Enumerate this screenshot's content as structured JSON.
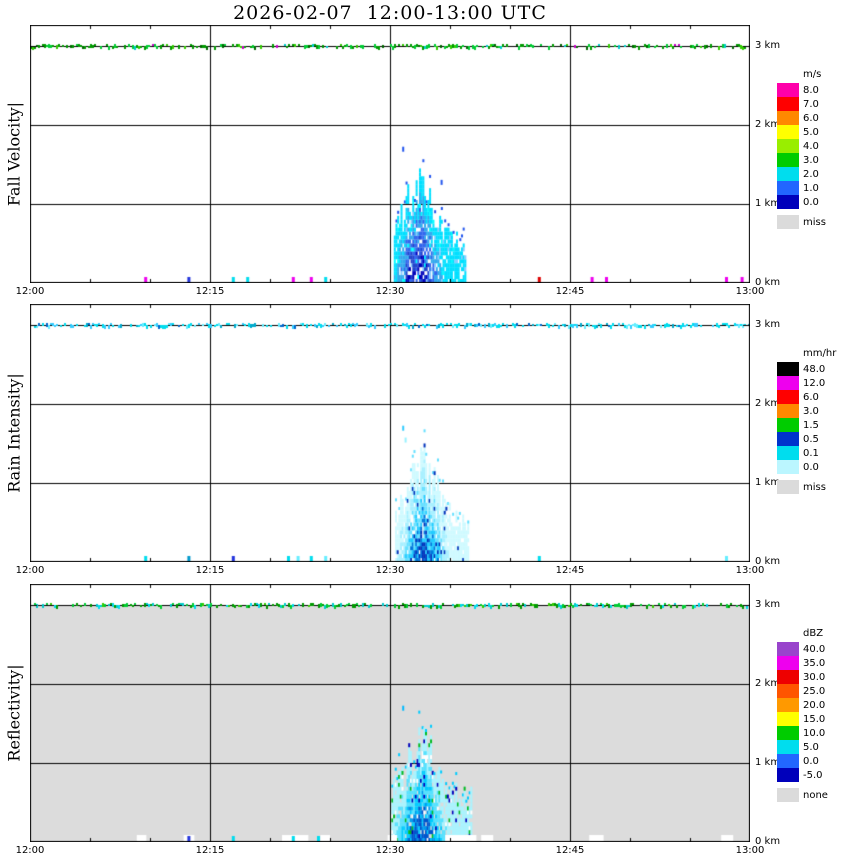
{
  "chart_data": {
    "type": "heatmap",
    "title": "2026-02-07  12:00-13:00 UTC",
    "x_axis": {
      "ticks": [
        "12:00",
        "12:15",
        "12:30",
        "12:45",
        "13:00"
      ],
      "minutes": [
        0,
        15,
        30,
        45,
        60
      ]
    },
    "y_axis": {
      "ticks": [
        "3 km",
        "2 km",
        "1 km",
        "0 km"
      ],
      "km": [
        3,
        2,
        1,
        0
      ],
      "max_km": 3.27
    },
    "panels": [
      {
        "id": "fall-velocity",
        "label": "Fall Velocity|",
        "units": "m/s",
        "area_fill": null,
        "legend": {
          "title": "m/s",
          "entries": [
            {
              "label": "8.0",
              "color": "#FF00AA"
            },
            {
              "label": "7.0",
              "color": "#FF0000"
            },
            {
              "label": "6.0",
              "color": "#FF8800"
            },
            {
              "label": "5.0",
              "color": "#FFFF00"
            },
            {
              "label": "4.0",
              "color": "#99EE00"
            },
            {
              "label": "3.0",
              "color": "#00CC00"
            },
            {
              "label": "2.0",
              "color": "#00DDEE"
            },
            {
              "label": "1.0",
              "color": "#2266FF"
            },
            {
              "label": "0.0",
              "color": "#0000BB"
            }
          ],
          "missing": {
            "label": "miss",
            "color": "#DBDBDB"
          }
        },
        "top_band": {
          "h_km": 3.0,
          "density": 0.6,
          "colors": [
            [
              "#009900",
              0.42
            ],
            [
              "#00CC33",
              0.25
            ],
            [
              "#006600",
              0.15
            ],
            [
              "#33CC00",
              0.1
            ],
            [
              "#CC00CC",
              0.03
            ],
            [
              "#00CCCC",
              0.05
            ]
          ]
        },
        "cell": {
          "t_start": 30.4,
          "t_end": 36.3,
          "t_peak": 32.4,
          "h_base": 0.5,
          "h_peak": 1.18,
          "gap_prob": 0.18,
          "levels": [
            "#00E0FF",
            "#33AAEE",
            "#3366EE",
            "#2244CC",
            "#0000BB"
          ],
          "noise": [
            [
              "#00FFFF",
              0.05
            ],
            [
              "#88CCFF",
              0.04
            ]
          ],
          "stray_color": "#2255EE"
        },
        "isolated_ticks": [
          {
            "t": 31.1,
            "h": 1.7,
            "color": "#2255EE"
          },
          {
            "t": 34.3,
            "h": 1.28,
            "color": "#2255EE"
          }
        ],
        "bottom_ticks": [
          {
            "t": 9.6,
            "color": "#EE00EE"
          },
          {
            "t": 13.2,
            "color": "#2233DD"
          },
          {
            "t": 16.9,
            "color": "#00DDEE"
          },
          {
            "t": 18.1,
            "color": "#00DDEE"
          },
          {
            "t": 21.9,
            "color": "#EE00EE"
          },
          {
            "t": 23.4,
            "color": "#EE00EE"
          },
          {
            "t": 24.6,
            "color": "#00DDEE"
          },
          {
            "t": 42.4,
            "color": "#DD0000"
          },
          {
            "t": 46.8,
            "color": "#EE00EE"
          },
          {
            "t": 48.0,
            "color": "#EE00EE"
          },
          {
            "t": 58.0,
            "color": "#EE00EE"
          },
          {
            "t": 59.3,
            "color": "#EE00EE"
          }
        ],
        "bottom_patches": []
      },
      {
        "id": "rain-intensity",
        "label": "Rain Intensity|",
        "units": "mm/hr",
        "area_fill": null,
        "legend": {
          "title": "mm/hr",
          "entries": [
            {
              "label": "48.0",
              "color": "#000000"
            },
            {
              "label": "12.0",
              "color": "#EE00EE"
            },
            {
              "label": "6.0",
              "color": "#FF0000"
            },
            {
              "label": "3.0",
              "color": "#FF8800"
            },
            {
              "label": "1.5",
              "color": "#00CC00"
            },
            {
              "label": "0.5",
              "color": "#0033CC"
            },
            {
              "label": "0.1",
              "color": "#00DDEE"
            },
            {
              "label": "0.0",
              "color": "#BBF6FF"
            }
          ],
          "missing": {
            "label": "miss",
            "color": "#DBDBDB"
          }
        },
        "top_band": {
          "h_km": 3.0,
          "density": 0.6,
          "colors": [
            [
              "#00DDEE",
              0.45
            ],
            [
              "#33CCFF",
              0.2
            ],
            [
              "#00AACC",
              0.15
            ],
            [
              "#66EEFF",
              0.12
            ],
            [
              "#0066CC",
              0.08
            ]
          ]
        },
        "cell": {
          "t_start": 30.5,
          "t_end": 36.6,
          "t_peak": 32.8,
          "h_base": 0.5,
          "h_peak": 1.2,
          "gap_prob": 0.12,
          "levels": [
            "#CFFAFF",
            "#A8F0FF",
            "#66E0FF",
            "#22CCFF",
            "#0077DD",
            "#0033BB"
          ],
          "noise": [
            [
              "#0033BB",
              0.03
            ]
          ],
          "stray_color": "#66E0FF"
        },
        "isolated_ticks": [
          {
            "t": 31.1,
            "h": 1.7,
            "color": "#33CCFF"
          },
          {
            "t": 31.3,
            "h": 1.55,
            "color": "#99F2FF"
          }
        ],
        "bottom_ticks": [
          {
            "t": 9.6,
            "color": "#00DDEE"
          },
          {
            "t": 13.2,
            "color": "#0099CC"
          },
          {
            "t": 16.9,
            "color": "#2233DD"
          },
          {
            "t": 21.5,
            "color": "#00DDEE"
          },
          {
            "t": 22.3,
            "color": "#66EEFF"
          },
          {
            "t": 23.4,
            "color": "#00DDEE"
          },
          {
            "t": 24.6,
            "color": "#66EEFF"
          },
          {
            "t": 42.4,
            "color": "#00DDEE"
          },
          {
            "t": 58.0,
            "color": "#66EEFF"
          }
        ],
        "bottom_patches": []
      },
      {
        "id": "reflectivity",
        "label": "Reflectivity|",
        "units": "dBZ",
        "area_fill": "#DCDCDC",
        "legend": {
          "title": "dBZ",
          "entries": [
            {
              "label": "40.0",
              "color": "#9944CC"
            },
            {
              "label": "35.0",
              "color": "#EE00EE"
            },
            {
              "label": "30.0",
              "color": "#EE0000"
            },
            {
              "label": "25.0",
              "color": "#FF5500"
            },
            {
              "label": "20.0",
              "color": "#FF9900"
            },
            {
              "label": "15.0",
              "color": "#FFFF00"
            },
            {
              "label": "10.0",
              "color": "#00CC00"
            },
            {
              "label": "5.0",
              "color": "#00DDEE"
            },
            {
              "label": "0.0",
              "color": "#2266FF"
            },
            {
              "label": "-5.0",
              "color": "#0000BB"
            }
          ],
          "missing": {
            "label": "none",
            "color": "#DBDBDB"
          }
        },
        "top_band": {
          "h_km": 3.0,
          "density": 0.6,
          "colors": [
            [
              "#009900",
              0.33
            ],
            [
              "#00CC33",
              0.2
            ],
            [
              "#00CCCC",
              0.25
            ],
            [
              "#33CC00",
              0.1
            ],
            [
              "#00DDEE",
              0.12
            ]
          ]
        },
        "cell": {
          "t_start": 30.2,
          "t_end": 36.8,
          "t_peak": 32.6,
          "h_base": 0.55,
          "h_peak": 1.22,
          "gap_prob": 0.1,
          "levels": [
            "#AAF4FF",
            "#55E2FF",
            "#00CCFF",
            "#0099EE",
            "#0055CC"
          ],
          "noise": [
            [
              "#00BB22",
              0.06
            ],
            [
              "#FFFFFF",
              0.05
            ],
            [
              "#0000BB",
              0.04
            ]
          ],
          "stray_color": "#00CCFF"
        },
        "isolated_ticks": [
          {
            "t": 31.1,
            "h": 1.7,
            "color": "#00BBFF"
          }
        ],
        "bottom_ticks": [
          {
            "t": 13.2,
            "color": "#2233DD"
          },
          {
            "t": 16.9,
            "color": "#00DDEE"
          },
          {
            "t": 21.9,
            "color": "#00DDEE"
          },
          {
            "t": 24.0,
            "color": "#00DDEE"
          }
        ],
        "bottom_patches": [
          {
            "t": 8.9,
            "w": 0.8,
            "color": "#FFFFFF"
          },
          {
            "t": 12.8,
            "w": 0.9,
            "color": "#FFFFFF"
          },
          {
            "t": 21.0,
            "w": 2.2,
            "color": "#FFFFFF"
          },
          {
            "t": 24.2,
            "w": 0.8,
            "color": "#FFFFFF"
          },
          {
            "t": 29.8,
            "w": 0.8,
            "color": "#FFFFFF"
          },
          {
            "t": 34.6,
            "w": 2.6,
            "color": "#FFFFFF"
          },
          {
            "t": 37.6,
            "w": 1.0,
            "color": "#FFFFFF"
          },
          {
            "t": 46.6,
            "w": 1.2,
            "color": "#FFFFFF"
          },
          {
            "t": 57.6,
            "w": 1.0,
            "color": "#FFFFFF"
          }
        ]
      }
    ]
  }
}
